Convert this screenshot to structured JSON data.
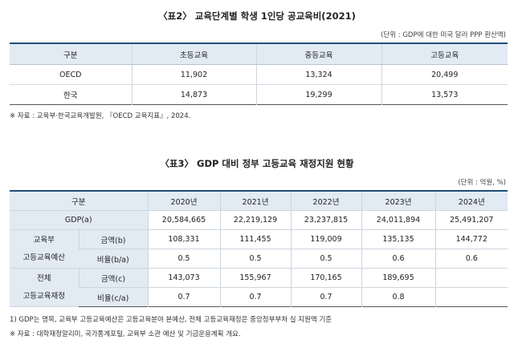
{
  "table1": {
    "title": "〈표2〉 교육단계별 학생 1인당 공교육비(2021)",
    "unit": "(단위 : GDP에 대한 미국 달러 PPP 환산액)",
    "headers": [
      "구분",
      "초등교육",
      "중등교육",
      "고등교육"
    ],
    "rows": [
      {
        "label": "OECD",
        "values": [
          "11,902",
          "13,324",
          "20,499"
        ]
      },
      {
        "label": "한국",
        "values": [
          "14,873",
          "19,299",
          "13,573"
        ]
      }
    ],
    "source": "※ 자료 : 교육부·한국교육개발원, 『OECD 교육지표』, 2024."
  },
  "table2": {
    "title": "〈표3〉 GDP 대비 정부 고등교육 재정지원 현황",
    "unit": "(단위 : 억원, %)",
    "headers": [
      "구분",
      "2020년",
      "2021년",
      "2022년",
      "2023년",
      "2024년"
    ],
    "gdp_row": {
      "label": "GDP(a)",
      "values": [
        "20,584,665",
        "22,219,129",
        "23,237,815",
        "24,011,894",
        "25,491,207"
      ]
    },
    "group1": {
      "label_line1": "교육부",
      "label_line2": "고등교육예산",
      "amount_label": "금액(b)",
      "amount_values": [
        "108,331",
        "111,455",
        "119,009",
        "135,135",
        "144,772"
      ],
      "ratio_label": "비율(b/a)",
      "ratio_values": [
        "0.5",
        "0.5",
        "0.5",
        "0.6",
        "0.6"
      ]
    },
    "group2": {
      "label_line1": "전체",
      "label_line2": "고등교육재정",
      "amount_label": "금액(c)",
      "amount_values": [
        "143,073",
        "155,967",
        "170,165",
        "189,695",
        ""
      ],
      "ratio_label": "비율(c/a)",
      "ratio_values": [
        "0.7",
        "0.7",
        "0.7",
        "0.8",
        ""
      ]
    },
    "footnote": "1) GDP는 명목, 교육부 고등교육예산은 고등교육분야 본예산, 전체 고등교육재정은 중앙정부부처 실 지원액 기준",
    "source": "※ 자료 : 대학재정알리미, 국가통계포털, 교육부 소관 예산 및 기금운용계획 개요."
  }
}
